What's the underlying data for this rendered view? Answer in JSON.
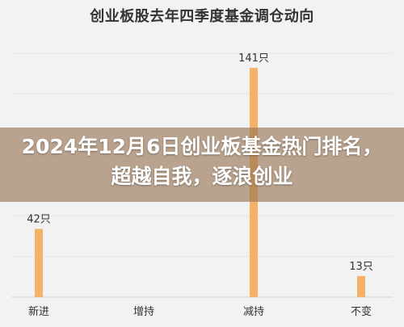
{
  "chart_data": {
    "type": "bar",
    "title": "创业板股去年四季度基金调仓动向",
    "categories": [
      "新进",
      "增持",
      "减持",
      "不变"
    ],
    "values": [
      42,
      0,
      141,
      13
    ],
    "data_labels": [
      "42只",
      "",
      "141只",
      "13只"
    ],
    "ylim": [
      0,
      150
    ],
    "grid": true,
    "bar_color": "#f5b168",
    "grid_color": "#e6e6e6"
  },
  "overlay": {
    "headline": "2024年12月6日创业板基金热门排名，超越自我，逐浪创业"
  }
}
